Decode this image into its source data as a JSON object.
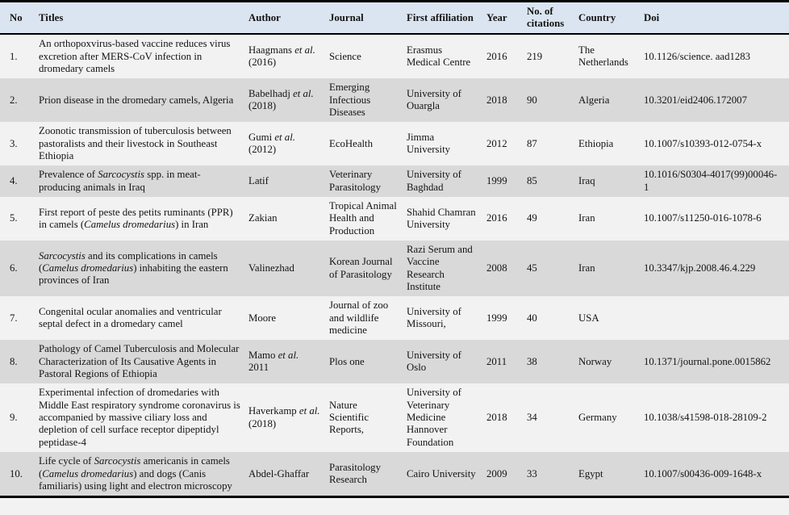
{
  "table": {
    "name": "most-cited-camel-papers",
    "colors": {
      "header_bg": "#dbe5f1",
      "row_light_bg": "#f2f2f2",
      "row_dark_bg": "#d9d9d9",
      "border": "#000000",
      "text": "#141414"
    },
    "header": {
      "no": "No",
      "title": "Titles",
      "author": "Author",
      "journal": "Journal",
      "affiliation": "First affiliation",
      "year": "Year",
      "citations": "No. of citations",
      "country": "Country",
      "doi": "Doi"
    },
    "rows": [
      {
        "no": "1.",
        "title": [
          {
            "t": "An orthopoxvirus-based vaccine reduces virus excretion after MERS-CoV infection in dromedary camels"
          }
        ],
        "author": [
          {
            "t": "Haagmans "
          },
          {
            "t": "et al.",
            "i": true
          },
          {
            "t": " (2016)"
          }
        ],
        "journal": "Science",
        "affiliation": "Erasmus Medical Centre",
        "year": "2016",
        "citations": "219",
        "country": "The Netherlands",
        "doi": "10.1126/science. aad1283"
      },
      {
        "no": "2.",
        "title": [
          {
            "t": "Prion disease in the dromedary camels, Algeria"
          }
        ],
        "author": [
          {
            "t": "Babelhadj "
          },
          {
            "t": "et al.",
            "i": true
          },
          {
            "t": " (2018)"
          }
        ],
        "journal": "Emerging Infectious Diseases",
        "affiliation": "University of Ouargla",
        "year": "2018",
        "citations": "90",
        "country": "Algeria",
        "doi": "10.3201/eid2406.172007"
      },
      {
        "no": "3.",
        "title": [
          {
            "t": "Zoonotic transmission of tuberculosis between pastoralists and their livestock in Southeast Ethiopia"
          }
        ],
        "author": [
          {
            "t": "Gumi "
          },
          {
            "t": "et al.",
            "i": true
          },
          {
            "t": " (2012)"
          }
        ],
        "journal": "EcoHealth",
        "affiliation": "Jimma University",
        "year": "2012",
        "citations": "87",
        "country": "Ethiopia",
        "doi": "10.1007/s10393-012-0754-x"
      },
      {
        "no": "4.",
        "title": [
          {
            "t": "Prevalence of "
          },
          {
            "t": "Sarcocystis",
            "i": true
          },
          {
            "t": " spp. in meat-producing animals in Iraq"
          }
        ],
        "author": [
          {
            "t": "Latif"
          }
        ],
        "journal": "Veterinary Parasitology",
        "affiliation": "University of Baghdad",
        "year": "1999",
        "citations": "85",
        "country": "Iraq",
        "doi": "10.1016/S0304-4017(99)00046-1"
      },
      {
        "no": "5.",
        "title": [
          {
            "t": "First report of peste des petits ruminants (PPR) in camels ("
          },
          {
            "t": "Camelus dromedarius",
            "i": true
          },
          {
            "t": ") in Iran"
          }
        ],
        "author": [
          {
            "t": "Zakian"
          }
        ],
        "journal": "Tropical Animal Health and Production",
        "affiliation": "Shahid Chamran University",
        "year": "2016",
        "citations": "49",
        "country": "Iran",
        "doi": "10.1007/s11250-016-1078-6"
      },
      {
        "no": "6.",
        "title": [
          {
            "t": "Sarcocystis",
            "i": true
          },
          {
            "t": " and its complications in camels ("
          },
          {
            "t": "Camelus dromedarius",
            "i": true
          },
          {
            "t": ") inhabiting the eastern provinces of Iran"
          }
        ],
        "author": [
          {
            "t": "Valinezhad"
          }
        ],
        "journal": "Korean Journal of Parasitology",
        "affiliation": "Razi Serum and Vaccine Research Institute",
        "year": "2008",
        "citations": "45",
        "country": "Iran",
        "doi": "10.3347/kjp.2008.46.4.229"
      },
      {
        "no": "7.",
        "title": [
          {
            "t": "Congenital ocular anomalies and ventricular septal defect in a dromedary camel"
          }
        ],
        "author": [
          {
            "t": "Moore"
          }
        ],
        "journal": "Journal of zoo and wildlife medicine",
        "affiliation": "University of Missouri,",
        "year": "1999",
        "citations": "40",
        "country": "USA",
        "doi": ""
      },
      {
        "no": "8.",
        "title": [
          {
            "t": "Pathology of Camel Tuberculosis and Molecular Characterization of Its Causative Agents in Pastoral Regions of Ethiopia"
          }
        ],
        "author": [
          {
            "t": "Mamo "
          },
          {
            "t": "et al.",
            "i": true
          },
          {
            "t": " 2011"
          }
        ],
        "journal": "Plos one",
        "affiliation": "University of Oslo",
        "year": "2011",
        "citations": "38",
        "country": "Norway",
        "doi": "10.1371/journal.pone.0015862"
      },
      {
        "no": "9.",
        "title": [
          {
            "t": "Experimental infection of dromedaries with Middle East respiratory syndrome coronavirus is accompanied by massive ciliary loss and depletion of cell surface receptor dipeptidyl peptidase-4"
          }
        ],
        "author": [
          {
            "t": "Haverkamp "
          },
          {
            "t": "et al.",
            "i": true
          },
          {
            "t": " (2018)"
          }
        ],
        "journal": "Nature Scientific Reports,",
        "affiliation": "University of Veterinary Medicine Hannover Foundation",
        "year": "2018",
        "citations": "34",
        "country": "Germany",
        "doi": "10.1038/s41598-018-28109-2"
      },
      {
        "no": "10.",
        "title": [
          {
            "t": "Life cycle of "
          },
          {
            "t": "Sarcocystis",
            "i": true
          },
          {
            "t": " americanis in camels ("
          },
          {
            "t": "Camelus dromedarius",
            "i": true
          },
          {
            "t": ") and dogs (Canis familiaris) using light and electron microscopy"
          }
        ],
        "author": [
          {
            "t": "Abdel-Ghaffar"
          }
        ],
        "journal": "Parasitology Research",
        "affiliation": "Cairo University",
        "year": "2009",
        "citations": "33",
        "country": "Egypt",
        "doi": "10.1007/s00436-009-1648-x"
      }
    ]
  }
}
